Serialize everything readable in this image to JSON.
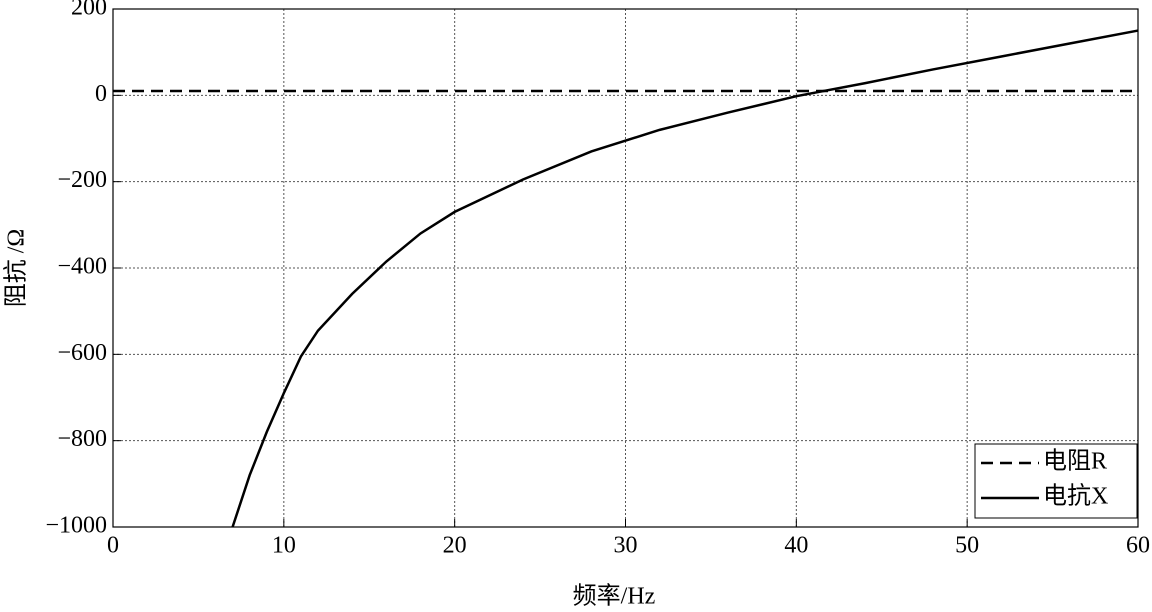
{
  "chart_data": {
    "type": "line",
    "x_label": "频率/Hz",
    "y_label": "阻抗 /Ω",
    "xlim": [
      0,
      60
    ],
    "xticks": [
      0,
      10,
      20,
      30,
      40,
      50,
      60
    ],
    "ylim": [
      -1000,
      200
    ],
    "yticks": [
      {
        "value": -1000,
        "label": "−1000"
      },
      {
        "value": -800,
        "label": "−800"
      },
      {
        "value": -600,
        "label": "−600"
      },
      {
        "value": -400,
        "label": "−400"
      },
      {
        "value": -200,
        "label": "−200"
      },
      0,
      200
    ],
    "grid": true,
    "legend": "lower right",
    "series": [
      {
        "name": "电阻R",
        "color": "#000000",
        "dash": true,
        "x": [
          0,
          60
        ],
        "values": [
          10,
          10
        ]
      },
      {
        "name": "电抗X",
        "color": "#000000",
        "dash": false,
        "x": [
          7,
          8,
          9,
          10,
          11,
          12,
          14,
          16,
          18,
          20,
          24,
          28,
          32,
          36,
          40,
          44,
          48,
          52,
          56,
          60
        ],
        "values": [
          -1000,
          -880,
          -780,
          -690,
          -605,
          -545,
          -460,
          -385,
          -320,
          -270,
          -195,
          -130,
          -80,
          -40,
          -2,
          28,
          60,
          90,
          120,
          150
        ]
      }
    ]
  }
}
